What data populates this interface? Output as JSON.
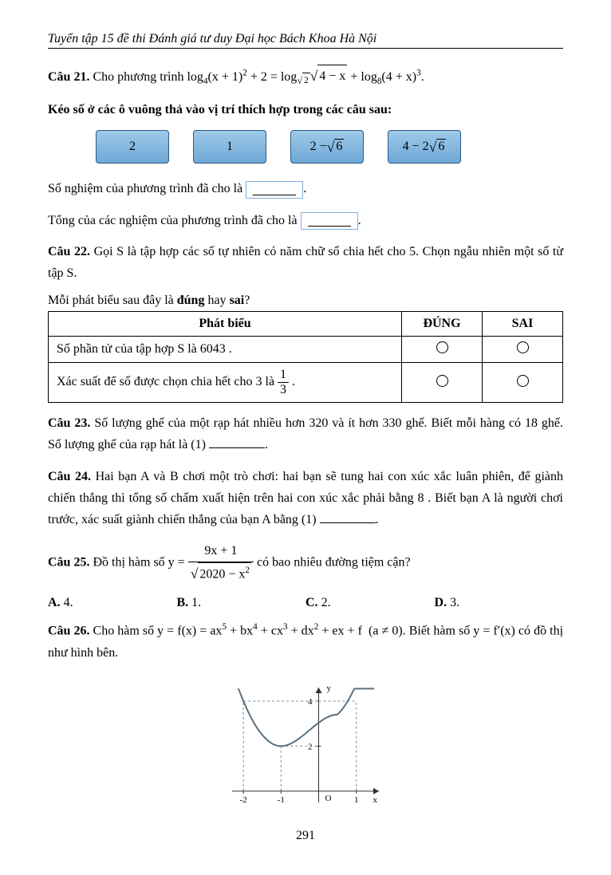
{
  "header": "Tuyển tập 15 đề thi Đánh giá tư duy Đại học Bách Khoa Hà Nội",
  "q21": {
    "label": "Câu 21.",
    "pre": " Cho phương trình ",
    "post": ".",
    "instr": "Kéo số ở các ô vuông thả vào vị trí thích hợp trong các câu sau:",
    "tiles": {
      "a": "2",
      "b": "1"
    },
    "line1_pre": "Số nghiệm của phương trình đã cho là ",
    "line1_post": ".",
    "line2_pre": "Tổng của các nghiệm của phương trình đã cho là ",
    "line2_post": "."
  },
  "q22": {
    "label": "Câu 22.",
    "text": " Gọi S là tập hợp các số tự nhiên có năm chữ số chia hết cho 5. Chọn ngẫu nhiên một số từ tập S.",
    "prompt_pre": "Mỗi phát biểu sau đây là ",
    "prompt_mid": " hay ",
    "prompt_post": "?",
    "dung": "đúng",
    "sai": "sai",
    "th_stmt": "Phát biểu",
    "th_dung": "ĐÚNG",
    "th_sai": "SAI",
    "row1": "Số phần tử của tập hợp S là 6043 .",
    "row2_pre": "Xác suất để số được chọn chia hết cho 3 là ",
    "row2_post": " ."
  },
  "q23": {
    "label": "Câu 23.",
    "text": " Số lượng ghế của một rạp hát nhiều hơn 320 và ít hơn 330 ghế. Biết mỗi hàng có 18 ghế. Số lượng ghế của rạp hát là (1) ",
    "post": "."
  },
  "q24": {
    "label": "Câu 24.",
    "text": " Hai bạn A và B chơi một trò chơi: hai bạn sẽ tung hai con xúc xắc luân phiên, để giành chiến thắng thì tổng số chấm xuất hiện trên hai con xúc xắc phải bằng 8 . Biết bạn A là người chơi trước, xác suất giành chiến thắng của bạn A bằng (1) ",
    "post": "."
  },
  "q25": {
    "label": "Câu 25.",
    "pre": " Đồ thị hàm số ",
    "post": " có bao nhiêu đường tiệm cận?",
    "opts": {
      "a": "A. 4.",
      "b": "B. 1.",
      "c": "C. 2.",
      "d": "D. 3."
    }
  },
  "q26": {
    "label": "Câu 26.",
    "pre": " Cho hàm số ",
    "mid": ". Biết hàm số ",
    "post": " có đồ thị như hình bên.",
    "graph": {
      "xmin": -2.3,
      "xmax": 1.6,
      "ymin": -0.5,
      "ymax": 4.6,
      "xticks": [
        -2,
        -1,
        1
      ],
      "yticks": [
        2,
        4
      ],
      "axis_color": "#303030",
      "curve_color": "#5a7080",
      "dash_color": "#888"
    }
  },
  "pagenum": "291"
}
